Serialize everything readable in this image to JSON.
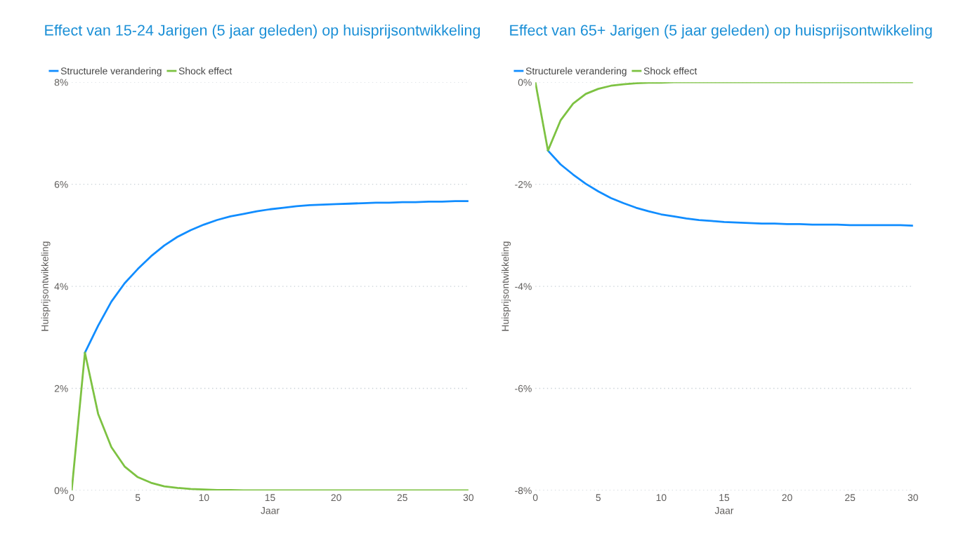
{
  "chart_data": [
    {
      "type": "line",
      "title": "Effect van 15-24 Jarigen (5 jaar geleden) op huisprijsontwikkeling",
      "xlabel": "Jaar",
      "ylabel": "Huisprijsontwikkeling",
      "x": [
        0,
        1,
        2,
        3,
        4,
        5,
        6,
        7,
        8,
        9,
        10,
        11,
        12,
        13,
        14,
        15,
        16,
        17,
        18,
        19,
        20,
        21,
        22,
        23,
        24,
        25,
        26,
        27,
        28,
        29,
        30
      ],
      "series": [
        {
          "name": "Structurele verandering",
          "color": "#118dff",
          "values": [
            null,
            2.7,
            3.23,
            3.7,
            4.06,
            4.34,
            4.59,
            4.8,
            4.97,
            5.1,
            5.21,
            5.3,
            5.37,
            5.42,
            5.47,
            5.51,
            5.54,
            5.57,
            5.59,
            5.6,
            5.61,
            5.62,
            5.63,
            5.64,
            5.64,
            5.65,
            5.65,
            5.66,
            5.66,
            5.67,
            5.67
          ]
        },
        {
          "name": "Shock effect",
          "color": "#7dc242",
          "values": [
            0,
            2.7,
            1.5,
            0.85,
            0.47,
            0.26,
            0.15,
            0.08,
            0.05,
            0.03,
            0.02,
            0.01,
            0.01,
            0,
            0,
            0,
            0,
            0,
            0,
            0,
            0,
            0,
            0,
            0,
            0,
            0,
            0,
            0,
            0,
            0,
            0
          ]
        }
      ],
      "xlim": [
        0,
        30
      ],
      "xticks": [
        0,
        5,
        10,
        15,
        20,
        25,
        30
      ],
      "ylim": [
        0,
        8
      ],
      "yticks": [
        {
          "value": 0,
          "label": "0%"
        },
        {
          "value": 2,
          "label": "2%"
        },
        {
          "value": 4,
          "label": "4%"
        },
        {
          "value": 6,
          "label": "6%"
        },
        {
          "value": 8,
          "label": "8%"
        }
      ],
      "grid": "y",
      "legend": "top left",
      "marker": "none",
      "line_style": "solid"
    },
    {
      "type": "line",
      "title": "Effect van 65+ Jarigen (5 jaar geleden) op huisprijsontwikkeling",
      "xlabel": "Jaar",
      "ylabel": "Huisprijsontwikkeling",
      "x": [
        0,
        1,
        2,
        3,
        4,
        5,
        6,
        7,
        8,
        9,
        10,
        11,
        12,
        13,
        14,
        15,
        16,
        17,
        18,
        19,
        20,
        21,
        22,
        23,
        24,
        25,
        26,
        27,
        28,
        29,
        30
      ],
      "series": [
        {
          "name": "Structurele verandering",
          "color": "#118dff",
          "values": [
            null,
            -1.34,
            -1.61,
            -1.81,
            -1.99,
            -2.14,
            -2.27,
            -2.37,
            -2.46,
            -2.53,
            -2.59,
            -2.63,
            -2.67,
            -2.7,
            -2.72,
            -2.74,
            -2.75,
            -2.76,
            -2.77,
            -2.77,
            -2.78,
            -2.78,
            -2.79,
            -2.79,
            -2.79,
            -2.8,
            -2.8,
            -2.8,
            -2.8,
            -2.8,
            -2.81
          ]
        },
        {
          "name": "Shock effect",
          "color": "#7dc242",
          "values": [
            0,
            -1.34,
            -0.75,
            -0.42,
            -0.23,
            -0.13,
            -0.07,
            -0.04,
            -0.02,
            -0.01,
            -0.01,
            0,
            0,
            0,
            0,
            0,
            0,
            0,
            0,
            0,
            0,
            0,
            0,
            0,
            0,
            0,
            0,
            0,
            0,
            0,
            0
          ]
        }
      ],
      "xlim": [
        0,
        30
      ],
      "xticks": [
        0,
        5,
        10,
        15,
        20,
        25,
        30
      ],
      "ylim": [
        -8,
        0
      ],
      "yticks": [
        {
          "value": -8,
          "label": "-8%"
        },
        {
          "value": -6,
          "label": "-6%"
        },
        {
          "value": -4,
          "label": "-4%"
        },
        {
          "value": -2,
          "label": "-2%"
        },
        {
          "value": 0,
          "label": "0%"
        }
      ],
      "grid": "y",
      "legend": "top left",
      "marker": "none",
      "line_style": "solid"
    }
  ]
}
